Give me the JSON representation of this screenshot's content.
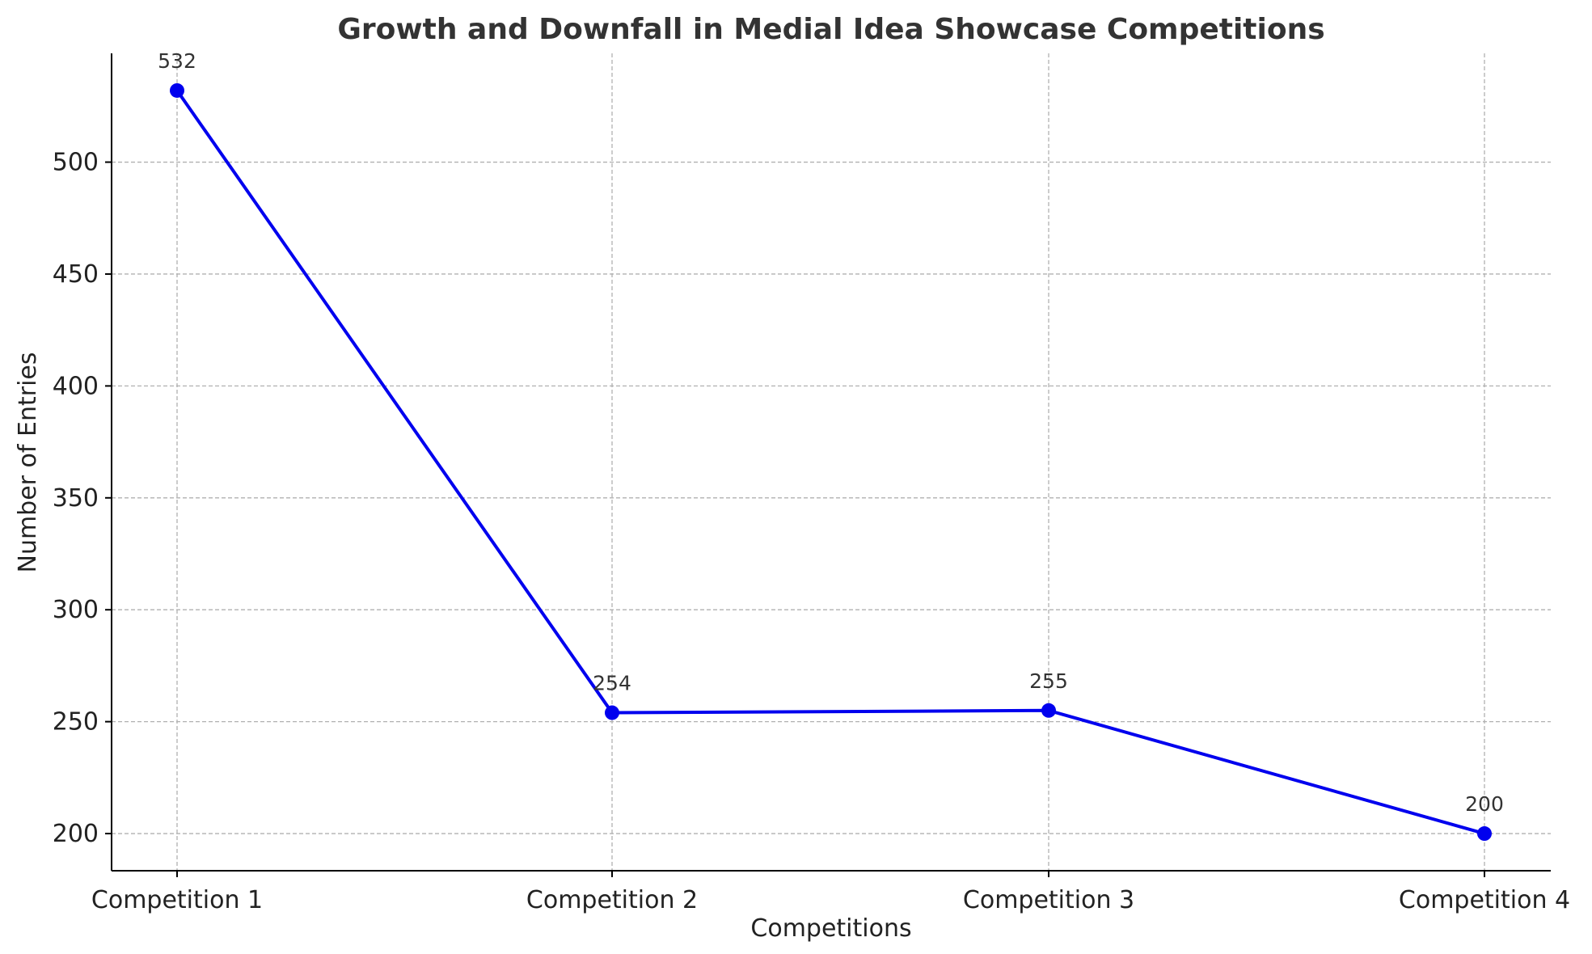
{
  "chart_data": {
    "type": "line",
    "title": "Growth and Downfall in Medial Idea Showcase Competitions",
    "xlabel": "Competitions",
    "ylabel": "Number of Entries",
    "categories": [
      "Competition 1",
      "Competition 2",
      "Competition 3",
      "Competition 4"
    ],
    "series": [
      {
        "name": "Number of Entries",
        "values": [
          532,
          254,
          255,
          200
        ],
        "color": "#0000ee",
        "marker": "circle"
      }
    ],
    "data_labels": [
      "532",
      "254",
      "255",
      "200"
    ],
    "ylim": [
      183.4,
      548.6
    ],
    "yticks": [
      200,
      250,
      300,
      350,
      400,
      450,
      500
    ],
    "ytick_labels": [
      "200",
      "250",
      "300",
      "350",
      "400",
      "450",
      "500"
    ],
    "grid": true,
    "legend": "none"
  }
}
